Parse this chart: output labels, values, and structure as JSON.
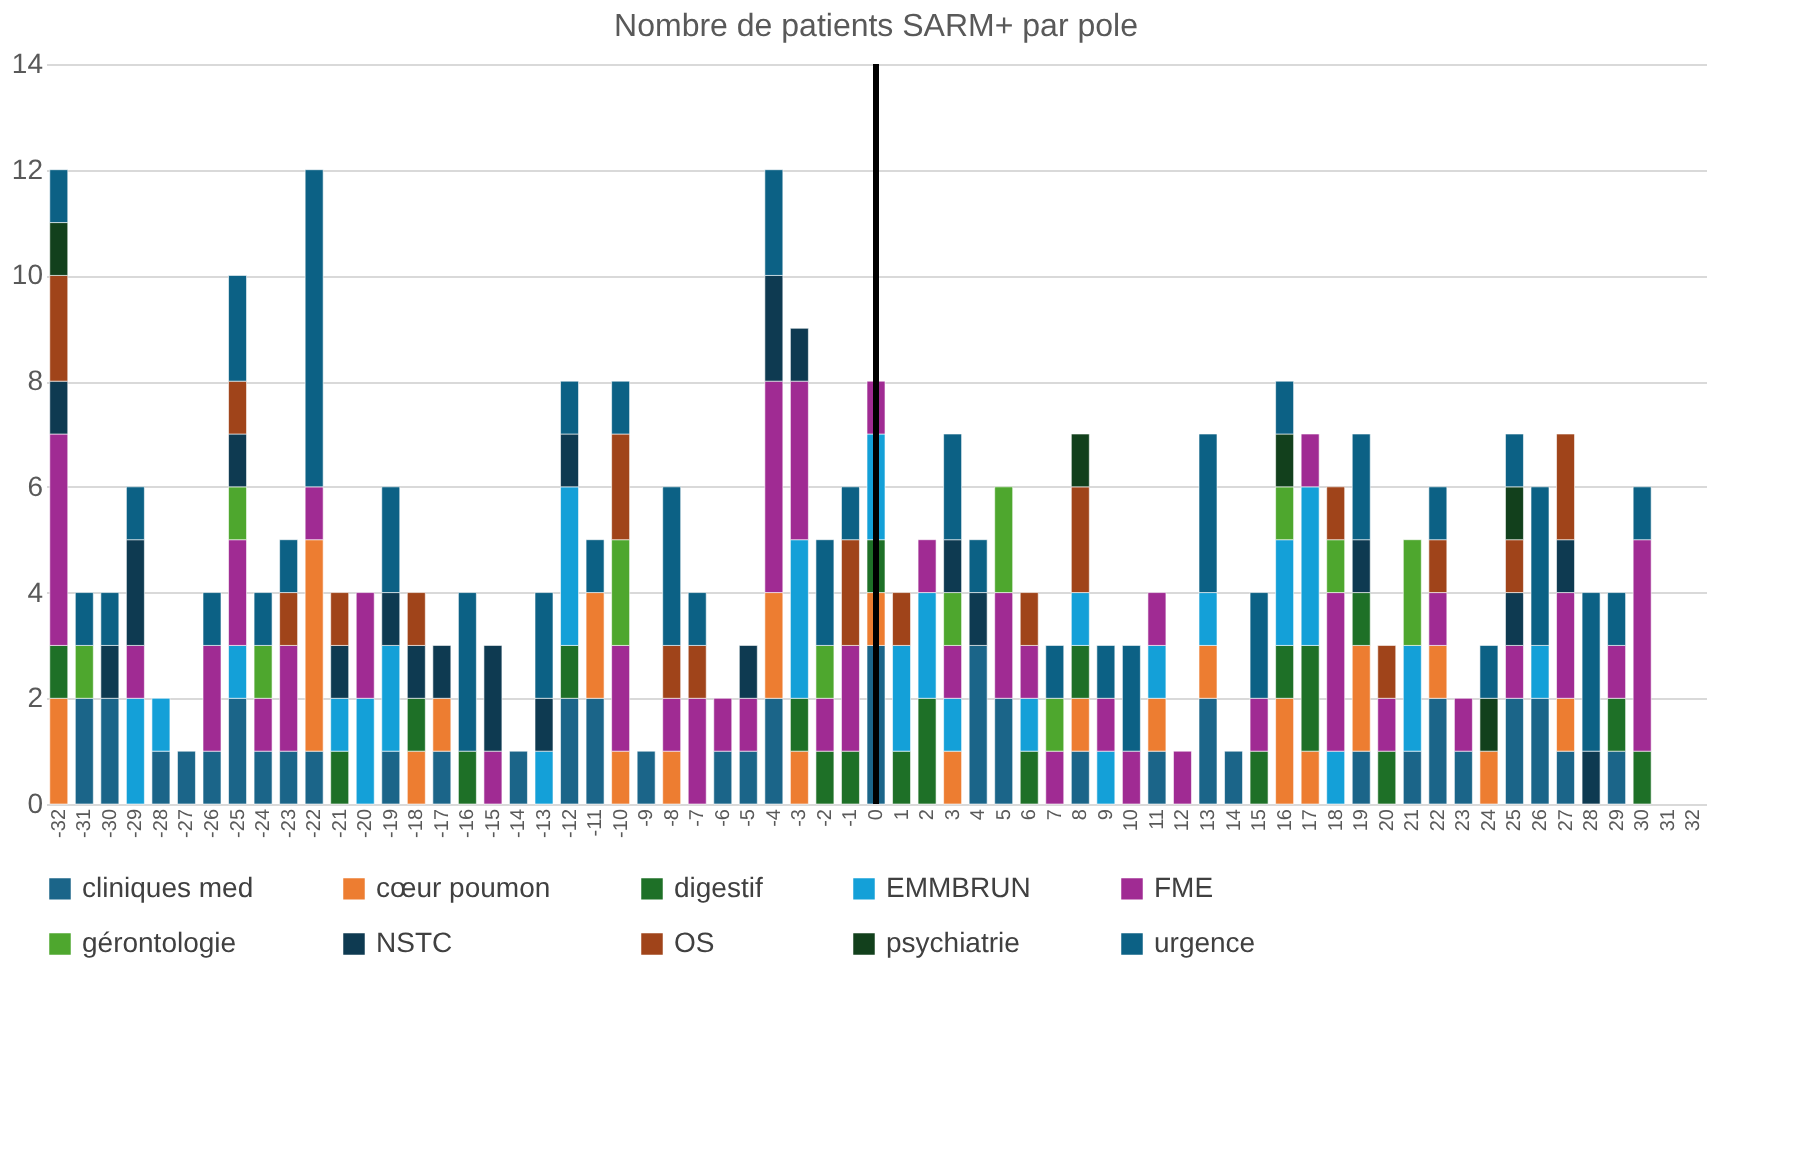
{
  "chart_data": {
    "type": "bar",
    "stacked": true,
    "title": "Nombre de patients SARM+ par pole",
    "categories": [
      "-32",
      "-31",
      "-30",
      "-29",
      "-28",
      "-27",
      "-26",
      "-25",
      "-24",
      "-23",
      "-22",
      "-21",
      "-20",
      "-19",
      "-18",
      "-17",
      "-16",
      "-15",
      "-14",
      "-13",
      "-12",
      "-11",
      "-10",
      "-9",
      "-8",
      "-7",
      "-6",
      "-5",
      "-4",
      "-3",
      "-2",
      "-1",
      "0",
      "1",
      "2",
      "3",
      "4",
      "5",
      "6",
      "7",
      "8",
      "9",
      "10",
      "11",
      "12",
      "13",
      "14",
      "15",
      "16",
      "17",
      "18",
      "19",
      "20",
      "21",
      "22",
      "23",
      "24",
      "25",
      "26",
      "27",
      "28",
      "29",
      "30",
      "31",
      "32"
    ],
    "series": [
      {
        "name": "cliniques med",
        "color": "#1b6589",
        "values": [
          null,
          2,
          2,
          null,
          1,
          1,
          1,
          2,
          1,
          1,
          1,
          null,
          null,
          1,
          null,
          1,
          null,
          null,
          1,
          null,
          2,
          2,
          null,
          1,
          null,
          null,
          1,
          1,
          2,
          null,
          null,
          null,
          3,
          null,
          null,
          null,
          3,
          2,
          null,
          null,
          1,
          null,
          null,
          1,
          null,
          2,
          1,
          null,
          null,
          null,
          null,
          1,
          null,
          1,
          2,
          1,
          null,
          2,
          2,
          1,
          null,
          1,
          null,
          null,
          null
        ]
      },
      {
        "name": "cœur poumon",
        "color": "#ed7d31",
        "values": [
          2,
          null,
          null,
          null,
          null,
          null,
          null,
          null,
          null,
          null,
          4,
          null,
          null,
          null,
          1,
          1,
          null,
          null,
          null,
          null,
          null,
          2,
          1,
          null,
          1,
          null,
          null,
          null,
          2,
          1,
          null,
          null,
          1,
          null,
          null,
          1,
          null,
          null,
          null,
          null,
          1,
          null,
          null,
          1,
          null,
          1,
          null,
          null,
          2,
          1,
          null,
          2,
          null,
          null,
          1,
          null,
          1,
          null,
          null,
          1,
          null,
          null,
          null,
          null,
          null
        ]
      },
      {
        "name": "digestif",
        "color": "#1e7027",
        "values": [
          1,
          null,
          null,
          null,
          null,
          null,
          null,
          null,
          null,
          null,
          null,
          1,
          null,
          null,
          1,
          null,
          1,
          null,
          null,
          null,
          1,
          null,
          null,
          null,
          null,
          null,
          null,
          null,
          null,
          1,
          1,
          1,
          1,
          1,
          2,
          null,
          null,
          null,
          1,
          null,
          1,
          null,
          null,
          null,
          null,
          null,
          null,
          1,
          1,
          2,
          null,
          1,
          1,
          null,
          null,
          null,
          null,
          null,
          null,
          null,
          null,
          1,
          1,
          null,
          null
        ]
      },
      {
        "name": "EMMBRUN",
        "color": "#14a0d8",
        "values": [
          null,
          null,
          null,
          2,
          1,
          null,
          null,
          1,
          null,
          null,
          null,
          1,
          2,
          2,
          null,
          null,
          null,
          null,
          null,
          1,
          3,
          null,
          null,
          null,
          null,
          null,
          null,
          null,
          null,
          3,
          null,
          null,
          2,
          2,
          2,
          1,
          null,
          null,
          1,
          null,
          1,
          1,
          null,
          1,
          null,
          1,
          null,
          null,
          2,
          3,
          1,
          null,
          null,
          2,
          null,
          null,
          null,
          null,
          1,
          null,
          null,
          null,
          null,
          null,
          null
        ]
      },
      {
        "name": "FME",
        "color": "#a02b93",
        "values": [
          4,
          null,
          null,
          1,
          null,
          null,
          2,
          2,
          1,
          2,
          1,
          null,
          2,
          null,
          null,
          null,
          null,
          1,
          null,
          null,
          null,
          null,
          2,
          null,
          1,
          2,
          1,
          1,
          4,
          3,
          1,
          2,
          1,
          null,
          1,
          1,
          null,
          2,
          1,
          1,
          null,
          1,
          1,
          1,
          1,
          null,
          null,
          1,
          null,
          1,
          3,
          null,
          1,
          null,
          1,
          1,
          null,
          1,
          null,
          2,
          null,
          1,
          4,
          null,
          null
        ]
      },
      {
        "name": "gérontologie",
        "color": "#4ea72e",
        "values": [
          null,
          1,
          null,
          null,
          null,
          null,
          null,
          1,
          1,
          null,
          null,
          null,
          null,
          null,
          null,
          null,
          null,
          null,
          null,
          null,
          null,
          null,
          2,
          null,
          null,
          null,
          null,
          null,
          null,
          null,
          1,
          null,
          null,
          null,
          null,
          1,
          null,
          2,
          null,
          1,
          null,
          null,
          null,
          null,
          null,
          null,
          null,
          null,
          1,
          null,
          1,
          null,
          null,
          2,
          null,
          null,
          null,
          null,
          null,
          null,
          null,
          null,
          null,
          null,
          null
        ]
      },
      {
        "name": "NSTC",
        "color": "#0e3a51",
        "values": [
          1,
          null,
          1,
          2,
          null,
          null,
          null,
          1,
          null,
          null,
          null,
          1,
          null,
          1,
          1,
          1,
          null,
          2,
          null,
          1,
          1,
          null,
          null,
          null,
          null,
          null,
          null,
          1,
          2,
          1,
          null,
          null,
          null,
          null,
          null,
          1,
          1,
          null,
          null,
          null,
          null,
          null,
          null,
          null,
          null,
          null,
          null,
          null,
          null,
          null,
          null,
          1,
          null,
          null,
          null,
          null,
          null,
          1,
          null,
          1,
          1,
          null,
          null,
          null,
          null
        ]
      },
      {
        "name": "OS",
        "color": "#a0441a",
        "values": [
          2,
          null,
          null,
          null,
          null,
          null,
          null,
          1,
          null,
          1,
          null,
          1,
          null,
          null,
          1,
          null,
          null,
          null,
          null,
          null,
          null,
          null,
          2,
          null,
          1,
          1,
          null,
          null,
          null,
          null,
          null,
          2,
          null,
          1,
          null,
          null,
          null,
          null,
          1,
          null,
          2,
          null,
          null,
          null,
          null,
          null,
          null,
          null,
          null,
          null,
          1,
          null,
          1,
          null,
          1,
          null,
          null,
          1,
          null,
          2,
          null,
          null,
          null,
          null,
          null
        ]
      },
      {
        "name": "psychiatrie",
        "color": "#12401c",
        "values": [
          1,
          null,
          null,
          null,
          null,
          null,
          null,
          null,
          null,
          null,
          null,
          null,
          null,
          null,
          null,
          null,
          null,
          null,
          null,
          null,
          null,
          null,
          null,
          null,
          null,
          null,
          null,
          null,
          null,
          null,
          null,
          null,
          null,
          null,
          null,
          null,
          null,
          null,
          null,
          null,
          1,
          null,
          null,
          null,
          null,
          null,
          null,
          null,
          1,
          null,
          null,
          null,
          null,
          null,
          null,
          null,
          1,
          1,
          null,
          null,
          null,
          null,
          null,
          null,
          null
        ]
      },
      {
        "name": "urgence",
        "color": "#0c6185",
        "values": [
          1,
          1,
          1,
          1,
          null,
          null,
          1,
          2,
          1,
          1,
          6,
          null,
          null,
          2,
          null,
          null,
          3,
          null,
          null,
          2,
          1,
          1,
          1,
          null,
          3,
          1,
          null,
          null,
          2,
          null,
          2,
          1,
          null,
          null,
          null,
          2,
          1,
          null,
          null,
          1,
          null,
          1,
          2,
          null,
          null,
          3,
          null,
          2,
          1,
          null,
          null,
          2,
          null,
          null,
          1,
          null,
          1,
          1,
          3,
          null,
          3,
          1,
          1,
          null,
          null
        ]
      }
    ],
    "ylim": [
      0,
      14
    ],
    "yticks": [
      0,
      2,
      4,
      6,
      8,
      10,
      12,
      14
    ],
    "grid": "y",
    "legend": "bottom",
    "ref_lines": [
      {
        "axis": "x",
        "value": "0",
        "color": "#000000"
      }
    ]
  }
}
